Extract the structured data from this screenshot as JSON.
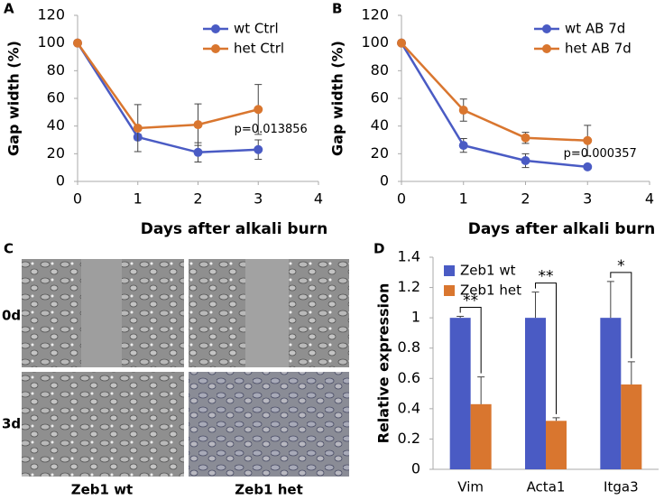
{
  "chart_data": [
    {
      "type": "line",
      "label": "A",
      "xlabel": "Days after alkali burn",
      "ylabel": "Gap width (%)",
      "x": [
        0,
        1,
        2,
        3
      ],
      "xlim": [
        0,
        4
      ],
      "xticks": [
        0,
        1,
        2,
        3,
        4
      ],
      "ylim": [
        0,
        120
      ],
      "yticks": [
        0,
        20,
        40,
        60,
        80,
        100,
        120
      ],
      "legend": "upper right",
      "annotation": "p=0.013856",
      "series": [
        {
          "name": "wt Ctrl",
          "color": "#4a5bc4",
          "values": [
            100,
            32,
            21,
            23
          ],
          "errors": [
            0,
            2,
            7,
            7
          ]
        },
        {
          "name": "het Ctrl",
          "color": "#d9762f",
          "values": [
            100,
            38.5,
            41,
            52
          ],
          "errors": [
            0,
            17,
            15,
            18
          ]
        }
      ]
    },
    {
      "type": "line",
      "label": "B",
      "xlabel": "Days after alkali burn",
      "ylabel": "Gap width (%)",
      "x": [
        0,
        1,
        2,
        3
      ],
      "xlim": [
        0,
        4
      ],
      "xticks": [
        0,
        1,
        2,
        3,
        4
      ],
      "ylim": [
        0,
        120
      ],
      "yticks": [
        0,
        20,
        40,
        60,
        80,
        100,
        120
      ],
      "legend": "upper right",
      "annotation": "p=0.000357",
      "series": [
        {
          "name": "wt AB 7d",
          "color": "#4a5bc4",
          "values": [
            100,
            26,
            15,
            10.5
          ],
          "errors": [
            0,
            5,
            5,
            1
          ]
        },
        {
          "name": "het AB 7d",
          "color": "#d9762f",
          "values": [
            100,
            51.5,
            31.5,
            29.5
          ],
          "errors": [
            0,
            8,
            4,
            11
          ]
        }
      ]
    },
    {
      "type": "bar",
      "label": "D",
      "ylabel": "Relative expression",
      "categories": [
        "Vim",
        "Acta1",
        "Itga3"
      ],
      "ylim": [
        0,
        1.4
      ],
      "yticks": [
        0,
        0.2,
        0.4,
        0.6,
        0.8,
        1,
        1.2,
        1.4
      ],
      "legend": "upper left",
      "annotations": [
        "**",
        "**",
        "*"
      ],
      "series": [
        {
          "name": "Zeb1 wt",
          "color": "#4a5bc4",
          "values": [
            1,
            1,
            1
          ],
          "errors": [
            0.01,
            0.17,
            0.24
          ]
        },
        {
          "name": "Zeb1 het",
          "color": "#d9762f",
          "values": [
            0.43,
            0.32,
            0.56
          ],
          "errors": [
            0.18,
            0.02,
            0.15
          ]
        }
      ]
    }
  ],
  "panel_c": {
    "label": "C",
    "rows": [
      "0d",
      "3d"
    ],
    "columns": [
      "Zeb1 wt",
      "Zeb1 het"
    ]
  }
}
